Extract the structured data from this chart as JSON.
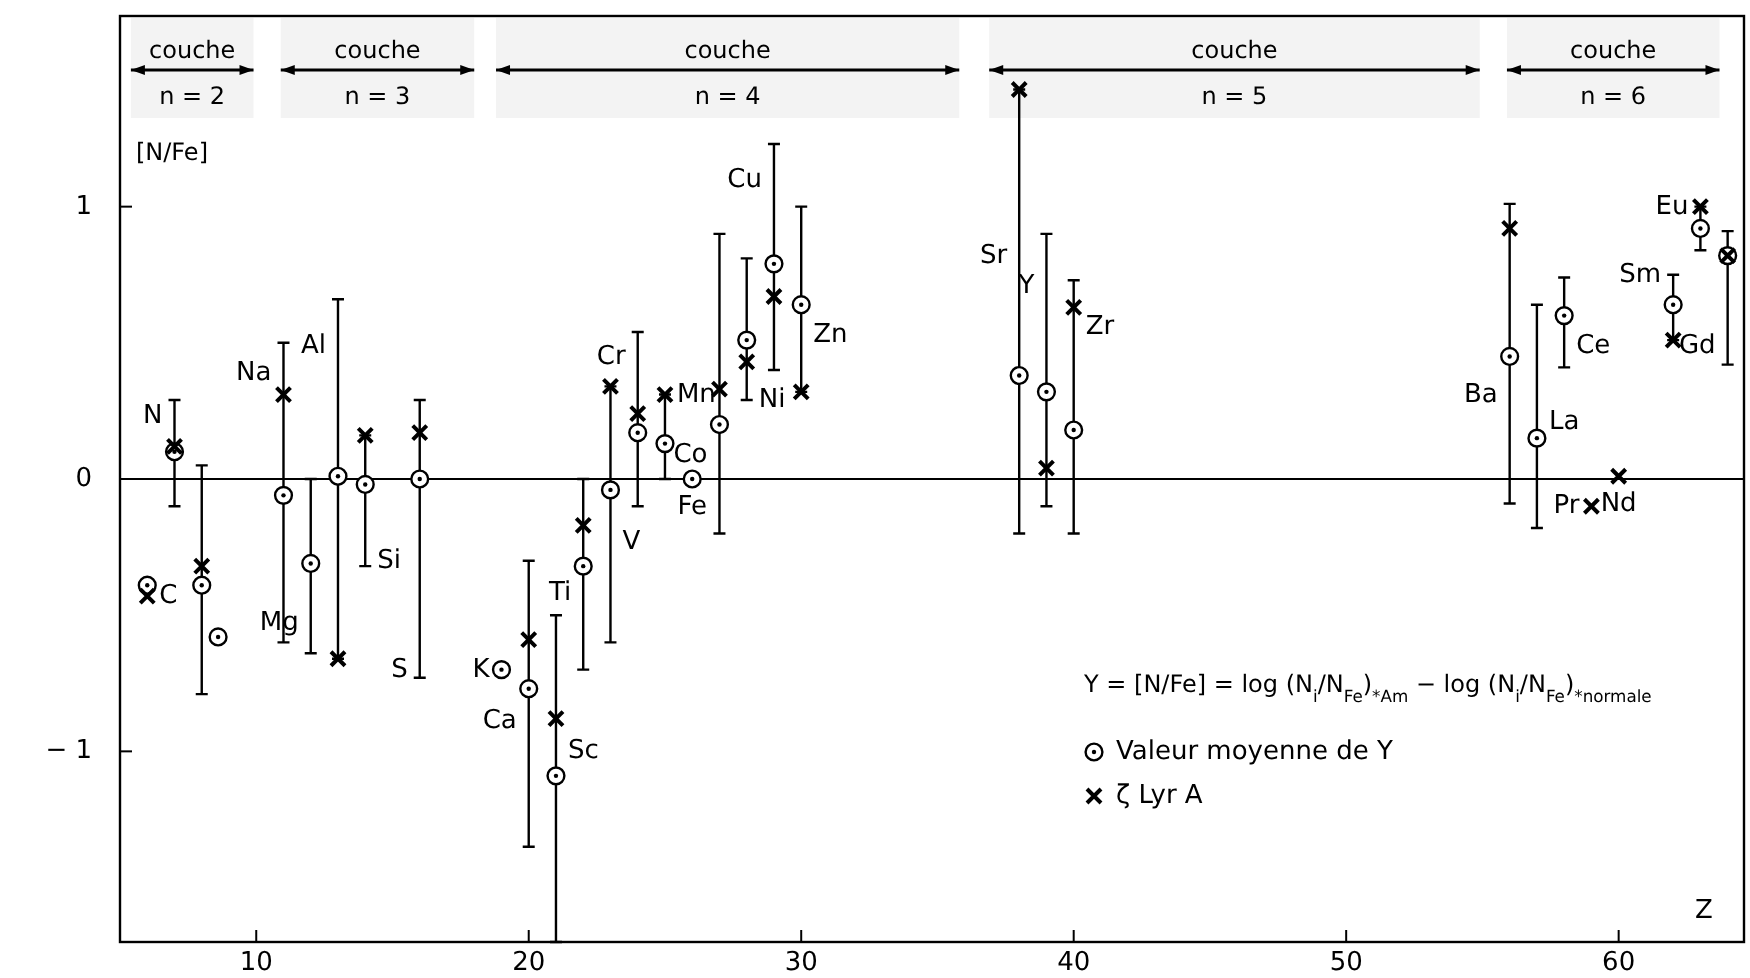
{
  "chart_data": {
    "type": "scatter",
    "xlabel": "Z",
    "ylabel": "[N/Fe]",
    "xlim": [
      5,
      64.6
    ],
    "ylim": [
      -1.7,
      1.7
    ],
    "xticks": [
      10,
      20,
      30,
      40,
      50,
      60
    ],
    "yticks": [
      -1,
      0,
      1
    ],
    "grid": false,
    "legend": "bottom right",
    "ref_lines": [
      {
        "axis": "y",
        "value": 0,
        "color": "#000000"
      }
    ],
    "bands": [
      {
        "axis": "x",
        "from": 5.4,
        "to": 9.9,
        "label": "couche n = 2"
      },
      {
        "axis": "x",
        "from": 10.9,
        "to": 18.0,
        "label": "couche n = 3"
      },
      {
        "axis": "x",
        "from": 18.8,
        "to": 35.8,
        "label": "couche n = 4"
      },
      {
        "axis": "x",
        "from": 36.9,
        "to": 54.9,
        "label": "couche n = 5"
      },
      {
        "axis": "x",
        "from": 55.9,
        "to": 63.7,
        "label": "couche n = 6"
      }
    ],
    "series": [
      {
        "name": "Valeur moyenne de Y",
        "color": "#000000",
        "marker": "circle",
        "x": [
          6,
          7,
          8,
          8.6,
          11,
          12,
          13,
          14,
          16,
          19,
          20,
          21,
          22,
          23,
          24,
          25,
          26,
          27,
          28,
          29,
          30,
          38,
          39,
          40,
          56,
          57,
          58,
          62,
          63,
          64
        ],
        "values": [
          -0.39,
          0.1,
          -0.39,
          -0.58,
          -0.06,
          -0.31,
          0.01,
          -0.02,
          0.0,
          -0.7,
          -0.77,
          -1.09,
          -0.32,
          -0.04,
          0.17,
          0.13,
          0,
          0.2,
          0.51,
          0.79,
          0.64,
          0.38,
          0.32,
          0.18,
          0.45,
          0.15,
          0.6,
          0.64,
          0.92,
          0.82
        ],
        "errors": [
          null,
          [
            -0.1,
            0.29
          ],
          [
            -0.79,
            0.05
          ],
          null,
          [
            -0.6,
            0.5
          ],
          [
            -0.64,
            0
          ],
          [
            -0.66,
            0.66
          ],
          [
            -0.32,
            0.16
          ],
          [
            -0.73,
            0.29
          ],
          null,
          [
            -1.35,
            -0.3
          ],
          [
            -1.7,
            -0.5
          ],
          [
            -0.7,
            0
          ],
          [
            -0.6,
            0.34
          ],
          [
            -0.1,
            0.54
          ],
          [
            0,
            0.31
          ],
          null,
          [
            -0.2,
            0.9
          ],
          [
            0.29,
            0.81
          ],
          [
            0.4,
            1.23
          ],
          [
            0.32,
            1.0
          ],
          [
            -0.2,
            1.43
          ],
          [
            -0.1,
            0.9
          ],
          [
            -0.2,
            0.73
          ],
          [
            -0.09,
            1.01
          ],
          [
            -0.18,
            0.64
          ],
          [
            0.41,
            0.74
          ],
          [
            0.51,
            0.75
          ],
          [
            0.84,
            1.0
          ],
          [
            0.42,
            0.91
          ]
        ]
      },
      {
        "name": "ζ Lyr A",
        "color": "#000000",
        "marker": "cross",
        "x": [
          6,
          7,
          8,
          11,
          13,
          14,
          16,
          20,
          21,
          22,
          23,
          24,
          25,
          27,
          28,
          29,
          30,
          38,
          39,
          40,
          56,
          59,
          60,
          62,
          63,
          64
        ],
        "values": [
          -0.43,
          0.12,
          -0.32,
          0.31,
          -0.66,
          0.16,
          0.17,
          -0.59,
          -0.88,
          -0.17,
          0.34,
          0.24,
          0.31,
          0.33,
          0.43,
          0.67,
          0.32,
          1.43,
          0.04,
          0.63,
          0.92,
          -0.1,
          0.01,
          0.51,
          1.0,
          0.82
        ]
      }
    ],
    "annotations": [
      "Y = [N/Fe] = log (N$_{i}$/N$_{Fe}$)$_{*Am}$ − log (N$_{i}$/N$_{Fe}$)$_{*normale}$",
      {
        "text": "C",
        "x": 6,
        "y": -0.43
      },
      {
        "text": "N",
        "x": 7,
        "y": 0.23
      },
      {
        "text": "Na",
        "x": 11,
        "y": 0.39
      },
      {
        "text": "Al",
        "x": 13,
        "y": 0.49
      },
      {
        "text": "Mg",
        "x": 12,
        "y": -0.53
      },
      {
        "text": "Si",
        "x": 14,
        "y": -0.3
      },
      {
        "text": "S",
        "x": 16,
        "y": -0.7
      },
      {
        "text": "K",
        "x": 19,
        "y": -0.7
      },
      {
        "text": "Ca",
        "x": 20,
        "y": -0.89
      },
      {
        "text": "Sc",
        "x": 21,
        "y": -1.0
      },
      {
        "text": "Ti",
        "x": 22,
        "y": -0.42
      },
      {
        "text": "V",
        "x": 23,
        "y": -0.23
      },
      {
        "text": "Cr",
        "x": 24,
        "y": 0.45
      },
      {
        "text": "Mn",
        "x": 25,
        "y": 0.31
      },
      {
        "text": "Fe",
        "x": 26,
        "y": 0
      },
      {
        "text": "Co",
        "x": 27,
        "y": 0.09
      },
      {
        "text": "Ni",
        "x": 28,
        "y": 0.29
      },
      {
        "text": "Cu",
        "x": 29,
        "y": 1.1
      },
      {
        "text": "Zn",
        "x": 30,
        "y": 0.53
      },
      {
        "text": "Sr",
        "x": 38,
        "y": 0.82
      },
      {
        "text": "Y",
        "x": 39,
        "y": 0.71
      },
      {
        "text": "Zr",
        "x": 40,
        "y": 0.56
      },
      {
        "text": "Ba",
        "x": 56,
        "y": 0.31
      },
      {
        "text": "La",
        "x": 57,
        "y": 0.21
      },
      {
        "text": "Ce",
        "x": 58,
        "y": 0.49
      },
      {
        "text": "Pr",
        "x": 59,
        "y": -0.1
      },
      {
        "text": "Nd",
        "x": 60,
        "y": 0.01
      },
      {
        "text": "Sm",
        "x": 62,
        "y": 0.75
      },
      {
        "text": "Eu",
        "x": 63,
        "y": 1.0
      },
      {
        "text": "Gd",
        "x": 64,
        "y": 0.49
      }
    ]
  }
}
